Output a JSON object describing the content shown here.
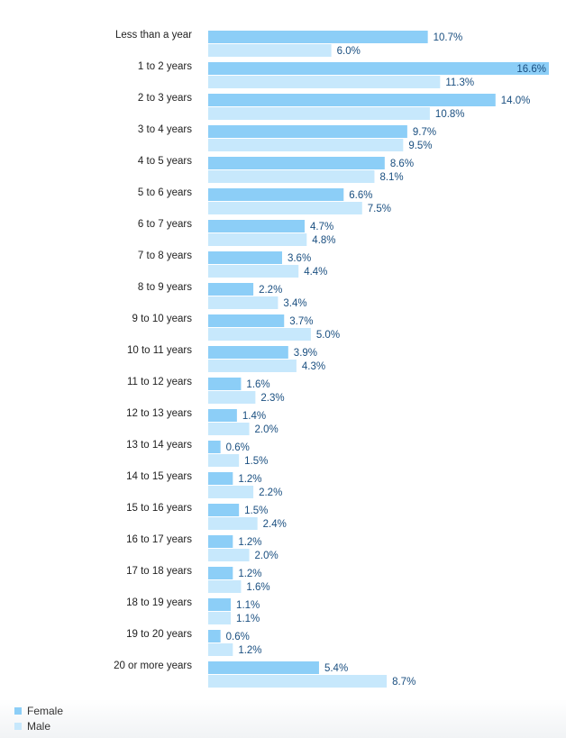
{
  "chart_data": {
    "type": "bar",
    "orientation": "horizontal",
    "categories": [
      "Less than a year",
      "1 to 2 years",
      "2 to 3 years",
      "3 to 4 years",
      "4 to 5 years",
      "5 to 6 years",
      "6 to 7 years",
      "7 to 8 years",
      "8 to 9 years",
      "9 to 10 years",
      "10 to 11 years",
      "11 to 12 years",
      "12 to 13 years",
      "13 to 14 years",
      "14 to 15 years",
      "15 to 16 years",
      "16 to 17 years",
      "17 to 18 years",
      "18 to 19 years",
      "19 to 20 years",
      "20 or more years"
    ],
    "series": [
      {
        "name": "Female",
        "color": "#8ccef7",
        "values": [
          10.7,
          16.6,
          14.0,
          9.7,
          8.6,
          6.6,
          4.7,
          3.6,
          2.2,
          3.7,
          3.9,
          1.6,
          1.4,
          0.6,
          1.2,
          1.5,
          1.2,
          1.2,
          1.1,
          0.6,
          5.4
        ],
        "labels": [
          "10.7%",
          "16.6%",
          "14.0%",
          "9.7%",
          "8.6%",
          "6.6%",
          "4.7%",
          "3.6%",
          "2.2%",
          "3.7%",
          "3.9%",
          "1.6%",
          "1.4%",
          "0.6%",
          "1.2%",
          "1.5%",
          "1.2%",
          "1.2%",
          "1.1%",
          "0.6%",
          "5.4%"
        ]
      },
      {
        "name": "Male",
        "color": "#c7e8fc",
        "values": [
          6.0,
          11.3,
          10.8,
          9.5,
          8.1,
          7.5,
          4.8,
          4.4,
          3.4,
          5.0,
          4.3,
          2.3,
          2.0,
          1.5,
          2.2,
          2.4,
          2.0,
          1.6,
          1.1,
          1.2,
          8.7
        ],
        "labels": [
          "6.0%",
          "11.3%",
          "10.8%",
          "9.5%",
          "8.1%",
          "7.5%",
          "4.8%",
          "4.4%",
          "3.4%",
          "5.0%",
          "4.3%",
          "2.3%",
          "2.0%",
          "1.5%",
          "2.2%",
          "2.4%",
          "2.0%",
          "1.6%",
          "1.1%",
          "1.2%",
          "8.7%"
        ]
      }
    ],
    "unit": "%",
    "xlim": [
      0,
      16.6
    ],
    "grid": false,
    "legend_placement": "bottom-left"
  },
  "legend": {
    "female_label": "Female",
    "male_label": "Male"
  }
}
